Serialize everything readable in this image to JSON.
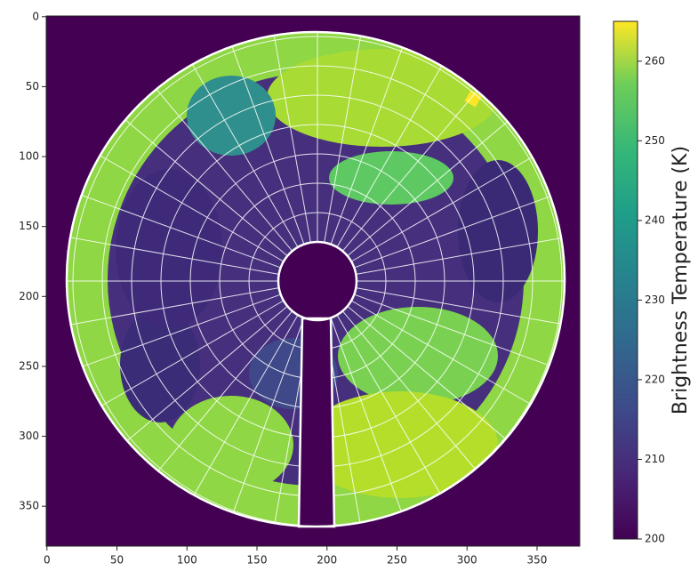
{
  "chart_data": {
    "type": "heatmap",
    "xlim": [
      -0.5,
      380.5
    ],
    "ylim": [
      378.5,
      -0.5
    ],
    "xticks": [
      0,
      50,
      100,
      150,
      200,
      250,
      300,
      350
    ],
    "yticks": [
      0,
      50,
      100,
      150,
      200,
      250,
      300,
      350
    ],
    "colorbar": {
      "label": "Brightness Temperature (K)",
      "colormap": "viridis",
      "lim": [
        200,
        265
      ],
      "ticks": [
        200,
        210,
        220,
        230,
        240,
        250,
        260
      ]
    }
  }
}
